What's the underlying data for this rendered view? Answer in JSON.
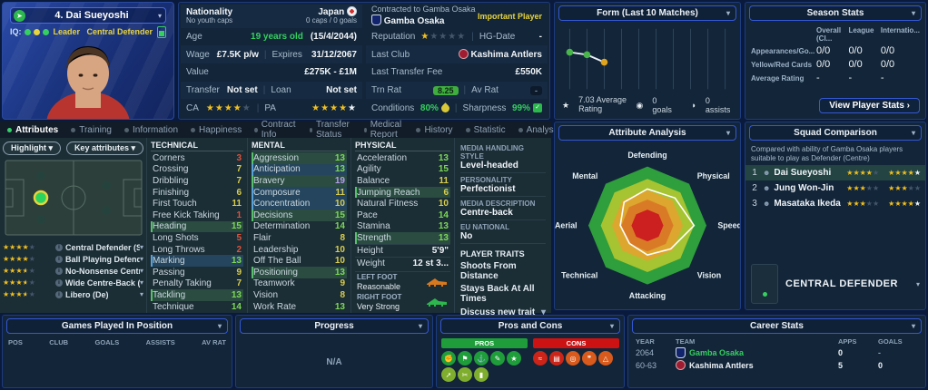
{
  "colors": {
    "attr_red": "#e0533a",
    "attr_yellow": "#d9ce4e",
    "attr_green": "#7ed957",
    "attr_purple": "#b79df0",
    "star_gold": "#f2c01e",
    "accent_green": "#35d05f",
    "accent_yellow": "#e8d43c",
    "pros_dark": "#1f9d3a",
    "pros_light": "#7fae2e",
    "cons_red": "#cc2418",
    "cons_orange": "#d85a1c"
  },
  "player_card": {
    "name": "4. Dai Sueyoshi",
    "iq_label": "IQ:",
    "iq_dots": [
      "#35d05f",
      "#e8d43c",
      "#35d05f"
    ],
    "role_badge": "Leader",
    "position_badge": "Central Defender"
  },
  "info": {
    "nationality_label": "Nationality",
    "nationality_sub": "No youth caps",
    "nation": "Japan",
    "caps": "0 caps / 0 goals",
    "age_label": "Age",
    "age_value": "19 years old",
    "dob": "(15/4/2044)",
    "wage_label": "Wage",
    "wage_value": "£7.5K p/w",
    "expires_label": "Expires",
    "expires_value": "31/12/2067",
    "value_label": "Value",
    "value_value": "£275K - £1M",
    "transfer_label": "Transfer",
    "transfer_value": "Not set",
    "loan_label": "Loan",
    "loan_value": "Not set",
    "ca_label": "CA",
    "pa_label": "PA",
    "ca_stars": {
      "gold": 4,
      "half": 0,
      "white": 0,
      "grey": 1
    },
    "pa_stars": {
      "gold": 4,
      "half": 0,
      "white": 1,
      "grey": 0
    }
  },
  "contract": {
    "title": "Contracted to Gamba Osaka",
    "club": "Gamba Osaka",
    "status": "Important Player",
    "reputation_label": "Reputation",
    "reputation_stars": {
      "gold": 1,
      "half": 0,
      "white": 0,
      "grey": 4
    },
    "hg_label": "HG-Date",
    "hg_value": "-",
    "last_club_label": "Last Club",
    "last_club": "Kashima Antlers",
    "fee_label": "Last Transfer Fee",
    "fee_value": "£550K",
    "trn_label": "Trn Rat",
    "trn_value": "8.25",
    "avrat_label": "Av Rat",
    "avrat_value": "-",
    "conditions_label": "Conditions",
    "conditions_value": "80%",
    "sharpness_label": "Sharpness",
    "sharpness_value": "99%"
  },
  "form_panel": {
    "title": "Form (Last 10 Matches)",
    "average": "7.03 Average Rating",
    "goals": "0 goals",
    "assists": "0 assists"
  },
  "season_stats": {
    "title": "Season Stats",
    "columns": [
      "Overall (Cl...",
      "League",
      "Internatio..."
    ],
    "rows": [
      {
        "label": "Appearances/Go...",
        "values": [
          "0/0",
          "0/0",
          "0/0"
        ]
      },
      {
        "label": "Yellow/Red Cards",
        "values": [
          "0/0",
          "0/0",
          "0/0"
        ]
      },
      {
        "label": "Average Rating",
        "values": [
          "-",
          "-",
          "-"
        ]
      }
    ],
    "button": "View Player Stats ›"
  },
  "tabs": [
    {
      "label": "Attributes",
      "active": true
    },
    {
      "label": "Training",
      "active": false
    },
    {
      "label": "Information",
      "active": false
    },
    {
      "label": "Happiness",
      "active": false
    },
    {
      "label": "Contract Info",
      "active": false
    },
    {
      "label": "Transfer Status",
      "active": false
    },
    {
      "label": "Medical Report",
      "active": false
    },
    {
      "label": "History",
      "active": false
    },
    {
      "label": "Statistic",
      "active": false
    },
    {
      "label": "Analysis",
      "active": false
    }
  ],
  "filters": {
    "highlight": "Highlight",
    "key_attributes": "Key attributes"
  },
  "positions": [
    {
      "stars": {
        "gold": 4,
        "half": 0,
        "white": 0,
        "grey": 1
      },
      "name": "Central Defender (St)"
    },
    {
      "stars": {
        "gold": 4,
        "half": 0,
        "white": 0,
        "grey": 1
      },
      "name": "Ball Playing Defende..."
    },
    {
      "stars": {
        "gold": 3,
        "half": 1,
        "white": 0,
        "grey": 1
      },
      "name": "No-Nonsense Centre..."
    },
    {
      "stars": {
        "gold": 3,
        "half": 1,
        "white": 0,
        "grey": 1
      },
      "name": "Wide Centre-Back (D..."
    },
    {
      "stars": {
        "gold": 3,
        "half": 1,
        "white": 0,
        "grey": 1
      },
      "name": "Libero (De)"
    }
  ],
  "attributes": {
    "technical_header": "TECHNICAL",
    "technical": [
      [
        "Corners",
        "3",
        "red",
        null
      ],
      [
        "Crossing",
        "7",
        "yellow",
        null
      ],
      [
        "Dribbling",
        "7",
        "yellow",
        null
      ],
      [
        "Finishing",
        "6",
        "yellow",
        null
      ],
      [
        "First Touch",
        "11",
        "yellow",
        null
      ],
      [
        "Free Kick Taking",
        "1",
        "red",
        null
      ],
      [
        "Heading",
        "15",
        "green",
        "green"
      ],
      [
        "Long Shots",
        "5",
        "red",
        null
      ],
      [
        "Long Throws",
        "2",
        "red",
        null
      ],
      [
        "Marking",
        "13",
        "green",
        "blue"
      ],
      [
        "Passing",
        "9",
        "yellow",
        null
      ],
      [
        "Penalty Taking",
        "7",
        "yellow",
        null
      ],
      [
        "Tackling",
        "13",
        "green",
        "green"
      ],
      [
        "Technique",
        "14",
        "green",
        null
      ]
    ],
    "mental_header": "MENTAL",
    "mental": [
      [
        "Aggression",
        "13",
        "green",
        "green"
      ],
      [
        "Anticipation",
        "13",
        "green",
        "blue"
      ],
      [
        "Bravery",
        "19",
        "purple",
        "green"
      ],
      [
        "Composure",
        "11",
        "yellow",
        "blue"
      ],
      [
        "Concentration",
        "10",
        "yellow",
        "blue"
      ],
      [
        "Decisions",
        "15",
        "green",
        "green"
      ],
      [
        "Determination",
        "14",
        "green",
        null
      ],
      [
        "Flair",
        "8",
        "yellow",
        null
      ],
      [
        "Leadership",
        "10",
        "yellow",
        null
      ],
      [
        "Off The Ball",
        "10",
        "yellow",
        null
      ],
      [
        "Positioning",
        "13",
        "green",
        "green"
      ],
      [
        "Teamwork",
        "9",
        "yellow",
        null
      ],
      [
        "Vision",
        "8",
        "yellow",
        null
      ],
      [
        "Work Rate",
        "13",
        "green",
        null
      ]
    ],
    "physical_header": "PHYSICAL",
    "physical": [
      [
        "Acceleration",
        "13",
        "green",
        null
      ],
      [
        "Agility",
        "15",
        "green",
        null
      ],
      [
        "Balance",
        "11",
        "yellow",
        null
      ],
      [
        "Jumping Reach",
        "6",
        "yellow",
        "green"
      ],
      [
        "Natural Fitness",
        "10",
        "yellow",
        null
      ],
      [
        "Pace",
        "14",
        "green",
        null
      ],
      [
        "Stamina",
        "13",
        "green",
        null
      ],
      [
        "Strength",
        "13",
        "green",
        "green"
      ]
    ],
    "height_label": "Height",
    "height_value": "5'9\"",
    "weight_label": "Weight",
    "weight_value": "12 st 3...",
    "left_foot_label": "LEFT FOOT",
    "left_foot_value": "Reasonable",
    "right_foot_label": "RIGHT FOOT",
    "right_foot_value": "Very Strong"
  },
  "profile": {
    "pairs": [
      {
        "label": "MEDIA HANDLING STYLE",
        "value": "Level-headed"
      },
      {
        "label": "PERSONALITY",
        "value": "Perfectionist"
      },
      {
        "label": "MEDIA DESCRIPTION",
        "value": "Centre-back"
      },
      {
        "label": "EU NATIONAL",
        "value": "No"
      }
    ],
    "traits_header": "PLAYER TRAITS",
    "traits": [
      "Shoots From Distance",
      "Stays Back At All Times"
    ],
    "discuss": "Discuss new trait",
    "pending_trait": "Shoots From Distance"
  },
  "attribute_analysis": {
    "title": "Attribute Analysis"
  },
  "squad_comparison": {
    "title": "Squad Comparison",
    "description": "Compared with ability of Gamba Osaka players suitable to play as Defender (Centre)",
    "rows": [
      {
        "rank": "1",
        "name": "Dai Sueyoshi",
        "ability": {
          "gold": 4,
          "half": 0,
          "white": 0,
          "grey": 1
        },
        "potential": {
          "gold": 4,
          "half": 0,
          "white": 1,
          "grey": 0
        },
        "highlight": true
      },
      {
        "rank": "2",
        "name": "Jung Won-Jin",
        "ability": {
          "gold": 3,
          "half": 0,
          "white": 0,
          "grey": 2
        },
        "potential": {
          "gold": 3,
          "half": 0,
          "white": 0,
          "grey": 2
        },
        "highlight": false
      },
      {
        "rank": "3",
        "name": "Masataka Ikeda",
        "ability": {
          "gold": 3,
          "half": 0,
          "white": 0,
          "grey": 2
        },
        "potential": {
          "gold": 4,
          "half": 0,
          "white": 1,
          "grey": 0
        },
        "highlight": false
      }
    ],
    "footer_position": "CENTRAL DEFENDER"
  },
  "games_played": {
    "title": "Games Played In Position",
    "columns": [
      "POS",
      "CLUB",
      "GOALS",
      "ASSISTS",
      "AV RAT"
    ]
  },
  "progress_panel": {
    "title": "Progress",
    "empty": "N/A"
  },
  "pros_cons": {
    "title": "Pros and Cons",
    "pros_label": "PROS",
    "cons_label": "CONS",
    "pros_icons": [
      {
        "glyph": "✊",
        "shade": "dark"
      },
      {
        "glyph": "⚑",
        "shade": "dark"
      },
      {
        "glyph": "⚓",
        "shade": "dark"
      },
      {
        "glyph": "✎",
        "shade": "dark"
      },
      {
        "glyph": "★",
        "shade": "dark"
      },
      {
        "glyph": "➚",
        "shade": "light"
      },
      {
        "glyph": "✂",
        "shade": "light"
      },
      {
        "glyph": "▮",
        "shade": "light"
      }
    ],
    "cons_icons": [
      {
        "glyph": "≈",
        "shade": "red"
      },
      {
        "glyph": "▤",
        "shade": "red"
      },
      {
        "glyph": "◎",
        "shade": "orange"
      },
      {
        "glyph": "❞",
        "shade": "orange"
      },
      {
        "glyph": "△",
        "shade": "orange"
      }
    ]
  },
  "career_stats": {
    "title": "Career Stats",
    "columns": [
      "YEAR",
      "TEAM",
      "APPS",
      "GOALS"
    ],
    "rows": [
      {
        "year": "2064",
        "team": "Gamba Osaka",
        "team_color": "#35d05f",
        "badge": "gamba",
        "apps": "0",
        "goals": "-"
      },
      {
        "year": "60-63",
        "team": "Kashima Antlers",
        "team_color": "#f0f4f8",
        "badge": "kashima",
        "apps": "5",
        "goals": "0"
      }
    ]
  },
  "chart_data": [
    {
      "type": "radar",
      "title": "Attribute Analysis",
      "axes": [
        "Defending",
        "Physical",
        "Speed",
        "Vision",
        "Attacking",
        "Technical",
        "Aerial",
        "Mental"
      ],
      "values": [
        0.62,
        0.66,
        0.79,
        0.56,
        0.5,
        0.43,
        0.46,
        0.56
      ],
      "rings": [
        {
          "r": 1.0,
          "color": "#2f9e3c"
        },
        {
          "r": 0.79,
          "color": "#a6c431"
        },
        {
          "r": 0.6,
          "color": "#dda62e"
        },
        {
          "r": 0.44,
          "color": "#d97b26"
        },
        {
          "r": 0.27,
          "color": "#cc1f1f"
        }
      ],
      "series_color": "#ffffff"
    },
    {
      "type": "line",
      "title": "Form (Last 10 Matches)",
      "x_slots": 10,
      "ylim": [
        6,
        8
      ],
      "points": [
        {
          "match": 1,
          "rating": 7.2,
          "color": "#4ab54a"
        },
        {
          "match": 2,
          "rating": 7.1,
          "color": "#4ab54a"
        },
        {
          "match": 3,
          "rating": 6.8,
          "color": "#dfa41f"
        }
      ],
      "annotations": [
        "7.03 Average Rating",
        "0 goals",
        "0 assists"
      ]
    }
  ]
}
